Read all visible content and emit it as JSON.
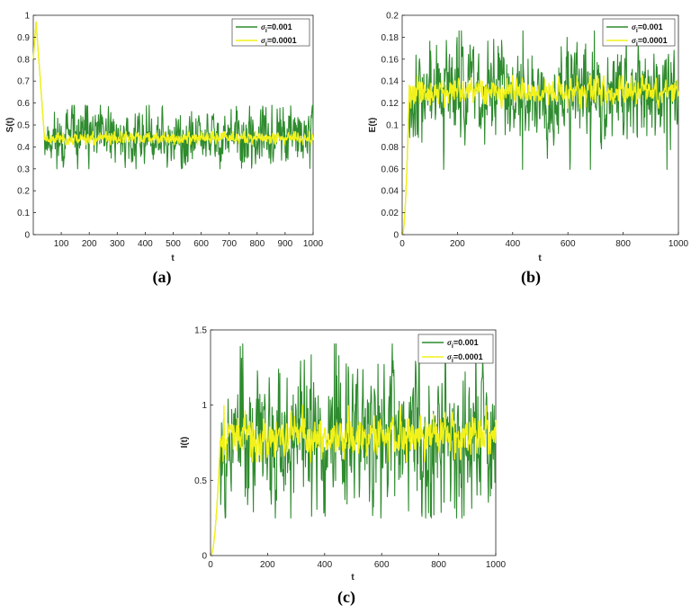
{
  "chart_data": [
    {
      "id": "a",
      "type": "line",
      "panel_label": "(a)",
      "xlabel": "t",
      "ylabel": "S(t)",
      "xlim": [
        0,
        1000
      ],
      "ylim": [
        0,
        1
      ],
      "xticks": [
        100,
        200,
        300,
        400,
        500,
        600,
        700,
        800,
        900,
        1000
      ],
      "yticks": [
        0,
        0.1,
        0.2,
        0.3,
        0.4,
        0.5,
        0.6,
        0.7,
        0.8,
        0.9,
        1
      ],
      "legend_position": "top-right",
      "series": [
        {
          "name": "σi=0.001",
          "legend_symbol": "σ",
          "legend_sub": "i",
          "legend_value": "=0.001",
          "color": "#2e8b2e",
          "start": 0.8,
          "peak": 0.97,
          "peak_t": 10,
          "settle_t": 40,
          "mean": 0.44,
          "amplitude": 0.06,
          "min": 0.3,
          "max": 0.59,
          "seed": 11
        },
        {
          "name": "σi=0.0001",
          "legend_symbol": "σ",
          "legend_sub": "i",
          "legend_value": "=0.0001",
          "color": "#f2f21a",
          "start": 0.8,
          "peak": 0.97,
          "peak_t": 10,
          "settle_t": 40,
          "mean": 0.44,
          "amplitude": 0.012,
          "min": 0.41,
          "max": 0.47,
          "seed": 23
        }
      ]
    },
    {
      "id": "b",
      "type": "line",
      "panel_label": "(b)",
      "xlabel": "t",
      "ylabel": "E(t)",
      "xlim": [
        0,
        1000
      ],
      "ylim": [
        0,
        0.2
      ],
      "xticks": [
        0,
        200,
        400,
        600,
        800,
        1000
      ],
      "yticks": [
        0,
        0.02,
        0.04,
        0.06,
        0.08,
        0.1,
        0.12,
        0.14,
        0.16,
        0.18,
        0.2
      ],
      "legend_position": "top-right",
      "series": [
        {
          "name": "σi=0.001",
          "legend_symbol": "σ",
          "legend_sub": "i",
          "legend_value": "=0.001",
          "color": "#2e8b2e",
          "start": 0,
          "rise_t": 25,
          "mean": 0.13,
          "amplitude": 0.02,
          "min": 0.058,
          "max": 0.187,
          "seed": 37
        },
        {
          "name": "σi=0.0001",
          "legend_symbol": "σ",
          "legend_sub": "i",
          "legend_value": "=0.0001",
          "color": "#f2f21a",
          "start": 0,
          "rise_t": 25,
          "mean": 0.13,
          "amplitude": 0.005,
          "min": 0.115,
          "max": 0.145,
          "seed": 41
        }
      ]
    },
    {
      "id": "c",
      "type": "line",
      "panel_label": "(c)",
      "xlabel": "t",
      "ylabel": "I(t)",
      "xlim": [
        0,
        1000
      ],
      "ylim": [
        0,
        1.5
      ],
      "xticks": [
        0,
        200,
        400,
        600,
        800,
        1000
      ],
      "yticks": [
        0,
        0.5,
        1,
        1.5
      ],
      "legend_position": "top-right",
      "series": [
        {
          "name": "σi=0.001",
          "legend_symbol": "σ",
          "legend_sub": "i",
          "legend_value": "=0.001",
          "color": "#2e8b2e",
          "start": 0,
          "rise_t": 35,
          "mean": 0.8,
          "amplitude": 0.22,
          "min": 0.25,
          "max": 1.42,
          "seed": 53
        },
        {
          "name": "σi=0.0001",
          "legend_symbol": "σ",
          "legend_sub": "i",
          "legend_value": "=0.0001",
          "color": "#f2f21a",
          "start": 0,
          "rise_t": 35,
          "mean": 0.8,
          "amplitude": 0.06,
          "min": 0.62,
          "max": 1.0,
          "seed": 67
        }
      ]
    }
  ]
}
